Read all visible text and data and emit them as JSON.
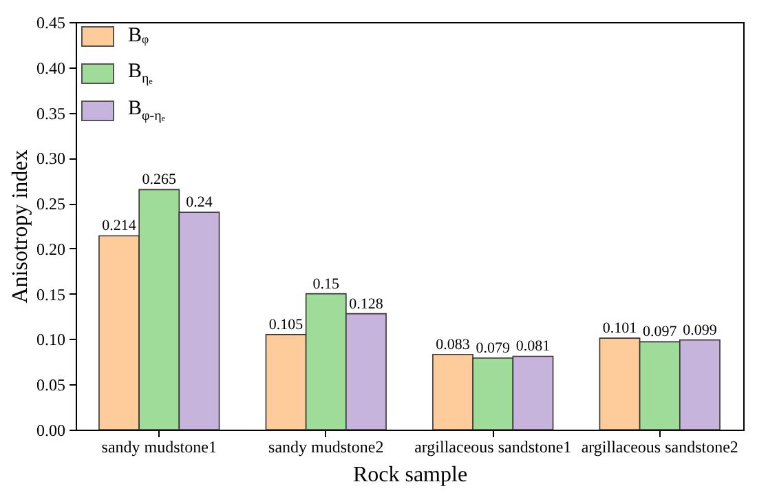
{
  "chart_data": {
    "type": "bar",
    "xlabel": "Rock sample",
    "ylabel": "Anisotropy index",
    "categories": [
      "sandy mudstone1",
      "sandy mudstone2",
      "argillaceous sandstone1",
      "argillaceous sandstone2"
    ],
    "series": [
      {
        "name": "Bᵩ",
        "color": "#fdcc9a",
        "values": [
          0.214,
          0.105,
          0.083,
          0.101
        ]
      },
      {
        "name": "B$_{ηₑ}$",
        "color": "#9fdc9a",
        "values": [
          0.265,
          0.15,
          0.079,
          0.097
        ]
      },
      {
        "name": "B$_{φ-ηₑ}$",
        "color": "#c6b4dc",
        "values": [
          0.24,
          0.128,
          0.081,
          0.099
        ]
      }
    ],
    "ylim": [
      0,
      0.45
    ],
    "yticks": [
      {
        "value": 0,
        "label": "0.00"
      },
      0.05,
      {
        "value": 0.1,
        "label": "0.10"
      },
      0.15,
      {
        "value": 0.2,
        "label": "0.20"
      },
      0.25,
      {
        "value": 0.3,
        "label": "0.30"
      },
      0.35,
      {
        "value": 0.4,
        "label": "0.40"
      },
      0.45
    ],
    "data_labels": true,
    "legend": "top left",
    "grid": false
  }
}
